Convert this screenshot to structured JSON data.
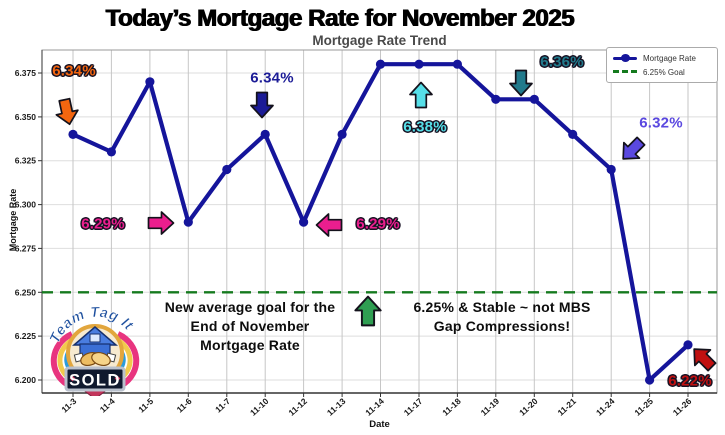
{
  "page": {
    "title": "Today’s Mortgage Rate for November 2025",
    "background": "#ffffff"
  },
  "chart_data": {
    "type": "line",
    "title": "Mortgage Rate Trend",
    "xlabel": "Date",
    "ylabel": "Mortgage Rate",
    "categories": [
      "11-3",
      "11-4",
      "11-5",
      "11-6",
      "11-7",
      "11-10",
      "11-12",
      "11-13",
      "11-14",
      "11-17",
      "11-18",
      "11-19",
      "11-20",
      "11-21",
      "11-24",
      "11-25",
      "11-26"
    ],
    "series": [
      {
        "name": "Mortgage Rate",
        "color": "#15159b",
        "marker": "circle",
        "values": [
          6.34,
          6.33,
          6.37,
          6.29,
          6.32,
          6.34,
          6.29,
          6.34,
          6.38,
          6.38,
          6.38,
          6.36,
          6.36,
          6.34,
          6.32,
          6.2,
          6.22
        ]
      }
    ],
    "reference_line": {
      "name": "6.25% Goal",
      "value": 6.25,
      "color": "#157a1e",
      "style": "dashed"
    },
    "yticks": [
      6.2,
      6.225,
      6.25,
      6.275,
      6.3,
      6.325,
      6.35,
      6.375
    ],
    "ylim": [
      6.1925,
      6.3885
    ],
    "grid": true,
    "legend_position": "upper right"
  },
  "legend": {
    "items": [
      {
        "label": "Mortgage Rate",
        "color": "#15159b",
        "style": "line-marker"
      },
      {
        "label": "6.25% Goal",
        "color": "#157a1e",
        "style": "dashed"
      }
    ]
  },
  "callouts": [
    {
      "id": "rate-11-3",
      "label": "6.34%",
      "color": "#f4660f",
      "arrow": "down"
    },
    {
      "id": "rate-11-6",
      "label": "6.29%",
      "color": "#eb1e8e",
      "arrow": "right"
    },
    {
      "id": "rate-11-10",
      "label": "6.34%",
      "color": "#1b1b96",
      "arrow": "down"
    },
    {
      "id": "rate-11-12",
      "label": "6.29%",
      "color": "#eb1e8e",
      "arrow": "left"
    },
    {
      "id": "rate-11-17",
      "label": "6.38%",
      "color": "#56dfe8",
      "arrow": "up"
    },
    {
      "id": "rate-11-20",
      "label": "6.36%",
      "color": "#217a8c",
      "arrow": "down"
    },
    {
      "id": "rate-11-24",
      "label": "6.32%",
      "color": "#5a48e0",
      "arrow": "down-left"
    },
    {
      "id": "rate-11-26",
      "label": "6.22%",
      "color": "#c01010",
      "arrow": "up-left"
    },
    {
      "id": "goal-arrow",
      "label": "",
      "color": "#2f9e52",
      "arrow": "up"
    }
  ],
  "notes": {
    "left": {
      "line1": "New average goal for the",
      "line2": "End of November",
      "line3": "Mortgage Rate"
    },
    "right": {
      "line1": "6.25% & Stable ~ not MBS",
      "line2": "Gap Compressions!"
    }
  },
  "logo": {
    "arc_text": "Team Tag It",
    "banner": "SOLD"
  }
}
